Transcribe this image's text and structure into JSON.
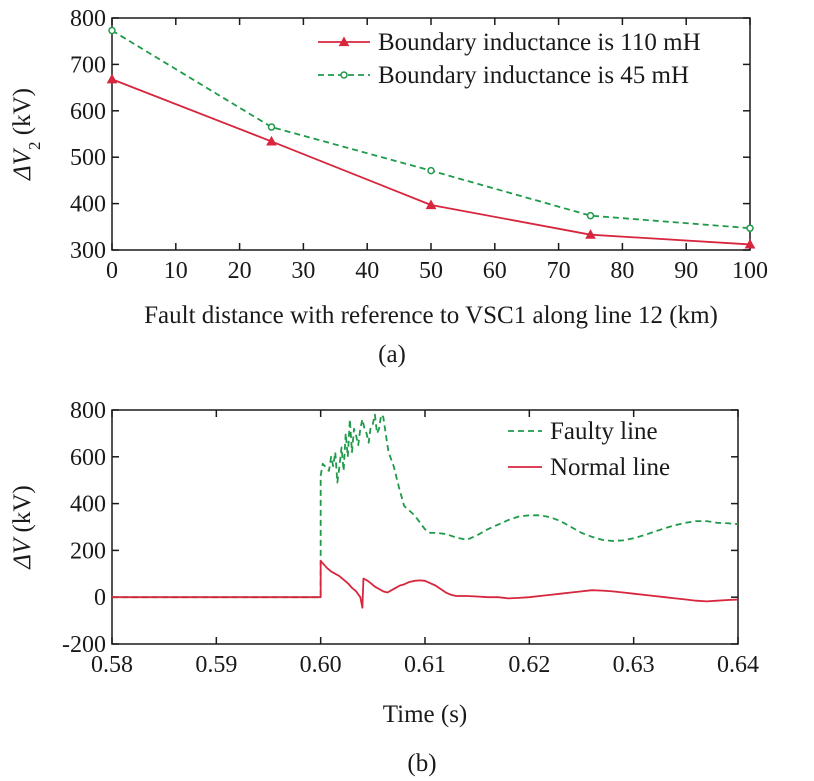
{
  "chart_data": [
    {
      "type": "line",
      "panel_label": "(a)",
      "xlabel": "Fault distance with reference to VSC1 along line 12 (km)",
      "ylabel_prefix": "ΔV",
      "ylabel_sub": "2",
      "ylabel_unit": " (kV)",
      "xlim": [
        0,
        100
      ],
      "ylim": [
        300,
        800
      ],
      "xticks": [
        0,
        10,
        20,
        30,
        40,
        50,
        60,
        70,
        80,
        90,
        100
      ],
      "yticks": [
        300,
        400,
        500,
        600,
        700,
        800
      ],
      "legend_position": "top-right",
      "series": [
        {
          "name": "Boundary inductance is 110 mH",
          "color": "#d7263d",
          "style": "solid",
          "marker": "triangle",
          "x": [
            0,
            25,
            50,
            75,
            100
          ],
          "y": [
            668,
            534,
            397,
            333,
            312
          ]
        },
        {
          "name": "Boundary inductance is 45 mH",
          "color": "#1f9a4a",
          "style": "dashed",
          "marker": "circle",
          "x": [
            0,
            25,
            50,
            75,
            100
          ],
          "y": [
            773,
            565,
            471,
            374,
            347
          ]
        }
      ]
    },
    {
      "type": "line",
      "panel_label": "(b)",
      "xlabel": "Time (s)",
      "ylabel_prefix": "ΔV",
      "ylabel_unit": " (kV)",
      "xlim": [
        0.58,
        0.64
      ],
      "ylim": [
        -200,
        800
      ],
      "xticks": [
        "0.58",
        "0.59",
        "0.60",
        "0.61",
        "0.62",
        "0.63",
        "0.64"
      ],
      "yticks": [
        -200,
        0,
        200,
        400,
        600,
        800
      ],
      "legend_position": "top-right",
      "series": [
        {
          "name": "Faulty line",
          "color": "#1f9a4a",
          "style": "dashed",
          "x": [
            0.58,
            0.6,
            0.6,
            0.6002,
            0.6008,
            0.601,
            0.6012,
            0.6014,
            0.6016,
            0.6018,
            0.602,
            0.6022,
            0.6024,
            0.6026,
            0.6028,
            0.603,
            0.6032,
            0.6034,
            0.6036,
            0.6038,
            0.604,
            0.6042,
            0.6044,
            0.6046,
            0.6048,
            0.605,
            0.6052,
            0.6054,
            0.6056,
            0.6058,
            0.606,
            0.6065,
            0.607,
            0.6075,
            0.608,
            0.6085,
            0.609,
            0.6095,
            0.61,
            0.6105,
            0.611,
            0.612,
            0.613,
            0.614,
            0.615,
            0.616,
            0.617,
            0.618,
            0.619,
            0.62,
            0.621,
            0.622,
            0.623,
            0.624,
            0.625,
            0.626,
            0.627,
            0.628,
            0.629,
            0.63,
            0.631,
            0.632,
            0.633,
            0.634,
            0.635,
            0.636,
            0.637,
            0.638,
            0.639,
            0.64
          ],
          "y": [
            0,
            0,
            520,
            570,
            540,
            600,
            560,
            620,
            490,
            560,
            640,
            540,
            700,
            600,
            760,
            620,
            720,
            690,
            650,
            720,
            760,
            720,
            700,
            660,
            730,
            740,
            780,
            700,
            720,
            780,
            770,
            620,
            560,
            470,
            390,
            370,
            350,
            320,
            290,
            275,
            275,
            270,
            255,
            245,
            265,
            290,
            310,
            330,
            345,
            350,
            350,
            342,
            325,
            300,
            275,
            258,
            245,
            240,
            243,
            252,
            265,
            280,
            295,
            308,
            318,
            325,
            325,
            318,
            316,
            312
          ]
        },
        {
          "name": "Normal line",
          "color": "#d7263d",
          "style": "solid",
          "x": [
            0.58,
            0.6,
            0.6,
            0.6003,
            0.6006,
            0.601,
            0.6014,
            0.6018,
            0.6022,
            0.6026,
            0.603,
            0.6034,
            0.6038,
            0.604,
            0.6041,
            0.6045,
            0.6048,
            0.6052,
            0.6056,
            0.606,
            0.6064,
            0.6068,
            0.6072,
            0.6076,
            0.608,
            0.6085,
            0.609,
            0.6095,
            0.61,
            0.6105,
            0.611,
            0.6115,
            0.612,
            0.6125,
            0.613,
            0.614,
            0.615,
            0.616,
            0.617,
            0.618,
            0.619,
            0.62,
            0.621,
            0.622,
            0.623,
            0.624,
            0.625,
            0.626,
            0.627,
            0.628,
            0.629,
            0.63,
            0.631,
            0.632,
            0.633,
            0.634,
            0.635,
            0.636,
            0.637,
            0.638,
            0.639,
            0.64
          ],
          "y": [
            0,
            0,
            155,
            140,
            125,
            110,
            100,
            90,
            75,
            60,
            40,
            25,
            0,
            -45,
            80,
            70,
            60,
            45,
            35,
            25,
            20,
            30,
            40,
            50,
            55,
            65,
            70,
            72,
            70,
            60,
            50,
            35,
            20,
            10,
            5,
            5,
            3,
            0,
            0,
            -5,
            -3,
            0,
            5,
            10,
            15,
            20,
            25,
            30,
            28,
            25,
            20,
            15,
            10,
            5,
            0,
            -5,
            -10,
            -15,
            -18,
            -15,
            -12,
            -10
          ]
        }
      ]
    }
  ]
}
